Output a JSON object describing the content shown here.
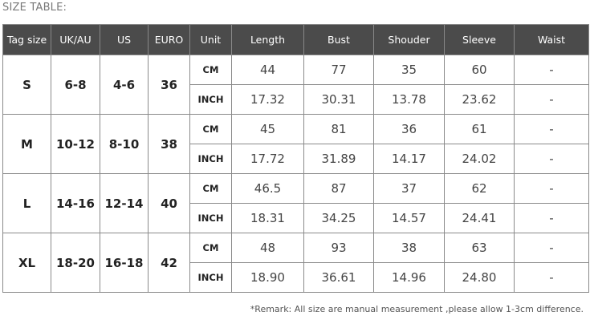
{
  "title": "SIZE TABLE:",
  "headers": [
    "Tag size",
    "UK/AU",
    "US",
    "EURO",
    "Unit",
    "Length",
    "Bust",
    "Shouder",
    "Sleeve",
    "Waist"
  ],
  "rows": [
    {
      "tag": "S",
      "uk": "6-8",
      "us": "4-6",
      "euro": "36",
      "cm": {
        "unit": "CM",
        "vals": [
          "44",
          "77",
          "35",
          "60",
          "-"
        ]
      },
      "inch": {
        "unit": "INCH",
        "vals": [
          "17.32",
          "30.31",
          "13.78",
          "23.62",
          "-"
        ]
      }
    },
    {
      "tag": "M",
      "uk": "10-12",
      "us": "8-10",
      "euro": "38",
      "cm": {
        "unit": "CM",
        "vals": [
          "45",
          "81",
          "36",
          "61",
          "-"
        ]
      },
      "inch": {
        "unit": "INCH",
        "vals": [
          "17.72",
          "31.89",
          "14.17",
          "24.02",
          "-"
        ]
      }
    },
    {
      "tag": "L",
      "uk": "14-16",
      "us": "12-14",
      "euro": "40",
      "cm": {
        "unit": "CM",
        "vals": [
          "46.5",
          "87",
          "37",
          "62",
          "-"
        ]
      },
      "inch": {
        "unit": "INCH",
        "vals": [
          "18.31",
          "34.25",
          "14.57",
          "24.41",
          "-"
        ]
      }
    },
    {
      "tag": "XL",
      "uk": "18-20",
      "us": "16-18",
      "euro": "42",
      "cm": {
        "unit": "CM",
        "vals": [
          "48",
          "93",
          "38",
          "63",
          "-"
        ]
      },
      "inch": {
        "unit": "INCH",
        "vals": [
          "18.90",
          "36.61",
          "14.96",
          "24.80",
          "-"
        ]
      }
    }
  ],
  "remark": "*Remark: All size are manual measurement ,please allow 1-3cm difference."
}
